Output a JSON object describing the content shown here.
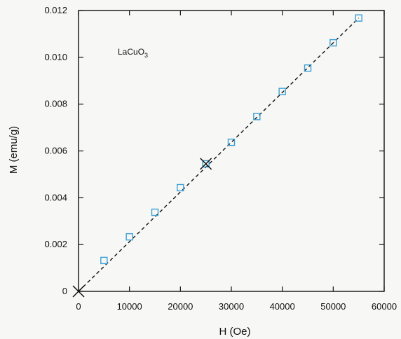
{
  "chart_data": {
    "type": "scatter",
    "title": "",
    "xlabel": "H (Oe)",
    "ylabel": "M (emu/g)",
    "annotation": {
      "text": "LaCuO",
      "subscript": "3"
    },
    "xlim": [
      0,
      60000
    ],
    "ylim": [
      0,
      0.012
    ],
    "x_ticks": [
      0,
      10000,
      20000,
      30000,
      40000,
      50000,
      60000
    ],
    "x_tick_labels": [
      "0",
      "10000",
      "20000",
      "30000",
      "40000",
      "50000",
      "60000"
    ],
    "y_ticks": [
      0,
      0.002,
      0.004,
      0.006,
      0.008,
      0.01,
      0.012
    ],
    "y_tick_labels": [
      "0",
      "0.002",
      "0.004",
      "0.006",
      "0.008",
      "0.010",
      "0.012"
    ],
    "grid": false,
    "series": [
      {
        "marker": "square",
        "color": "#3a9fd6",
        "x": [
          5000,
          10000,
          15000,
          20000,
          25000,
          30000,
          35000,
          40000,
          45000,
          50000,
          55000
        ],
        "y": [
          0.00132,
          0.00233,
          0.00338,
          0.00443,
          0.00545,
          0.00637,
          0.00747,
          0.00854,
          0.00954,
          0.01062,
          0.01168
        ]
      },
      {
        "marker": "x",
        "color": "#111111",
        "x": [
          0,
          25000
        ],
        "y": [
          0,
          0.00545
        ]
      }
    ],
    "fit_line": {
      "style": "dashed",
      "color": "#111111",
      "x": [
        0,
        55000
      ],
      "y": [
        0,
        0.01168
      ]
    }
  }
}
